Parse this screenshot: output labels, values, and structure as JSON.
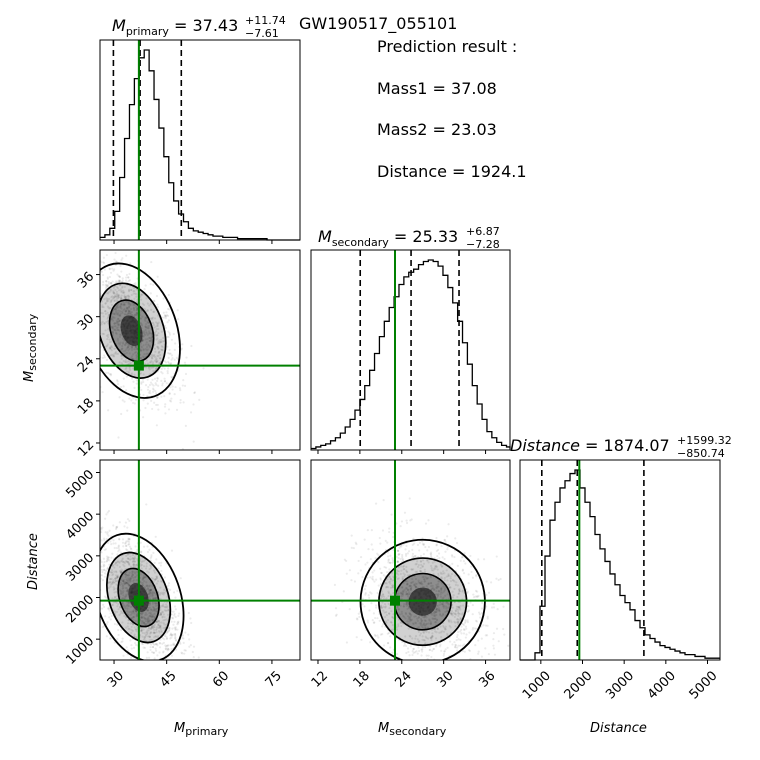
{
  "event_name": "GW190517_055101",
  "prediction": {
    "header": "Prediction result :",
    "mass1_label": "Mass1 = 37.08",
    "mass2_label": "Mass2 = 23.03",
    "distance_label": "Distance = 1924.1"
  },
  "colors": {
    "truth": "#008000",
    "hist": "#000000",
    "scatter": "#999999"
  },
  "chart_data": {
    "type": "corner",
    "parameters": [
      {
        "name": "M_primary",
        "axis_label_main": "M",
        "axis_label_sub": "primary",
        "title_main": "M",
        "title_sub": "primary",
        "title_eq": " = 37.43",
        "title_plus": "+11.74",
        "title_minus": "−7.61",
        "median": 37.43,
        "q_low": 29.82,
        "q_high": 49.17,
        "truth": 37.08,
        "range": [
          26,
          83
        ],
        "ticks": [
          30,
          45,
          60,
          75
        ],
        "hist": {
          "edges_start": 26,
          "bin_width": 1.4,
          "counts": [
            2,
            4,
            9,
            22,
            48,
            78,
            104,
            124,
            140,
            146,
            130,
            108,
            86,
            64,
            44,
            30,
            20,
            14,
            9,
            7,
            6,
            5,
            4,
            3,
            3,
            2,
            2,
            2,
            1,
            1,
            1,
            1,
            1,
            1,
            0,
            0,
            0,
            0,
            0,
            0,
            0
          ]
        }
      },
      {
        "name": "M_secondary",
        "axis_label_main": "M",
        "axis_label_sub": "secondary",
        "title_main": "M",
        "title_sub": "secondary",
        "title_eq": " = 25.33",
        "title_plus": "+6.87",
        "title_minus": "−7.28",
        "median": 25.33,
        "q_low": 18.05,
        "q_high": 32.2,
        "truth": 23.03,
        "range": [
          11,
          39.5
        ],
        "ticks": [
          12,
          18,
          24,
          30,
          36
        ],
        "hist": {
          "edges_start": 11,
          "bin_width": 0.7,
          "counts": [
            1,
            2,
            3,
            4,
            6,
            8,
            11,
            15,
            20,
            26,
            33,
            42,
            52,
            63,
            74,
            84,
            93,
            100,
            108,
            113,
            116,
            118,
            121,
            123,
            124,
            123,
            120,
            114,
            106,
            96,
            84,
            70,
            56,
            42,
            30,
            20,
            12,
            8,
            5,
            3,
            2,
            1
          ]
        }
      },
      {
        "name": "Distance",
        "axis_label_main": "Distance",
        "title_main": "Distance",
        "title_eq": " = 1874.07",
        "title_plus": "+1599.32",
        "title_minus": "−850.74",
        "median": 1874.07,
        "q_low": 1023.33,
        "q_high": 3473.39,
        "truth": 1924.1,
        "range": [
          500,
          5300
        ],
        "ticks": [
          1000,
          2000,
          3000,
          4000,
          5000
        ],
        "hist": {
          "edges_start": 500,
          "bin_width": 120,
          "counts": [
            0,
            0,
            0,
            4,
            30,
            58,
            78,
            88,
            96,
            100,
            104,
            106,
            96,
            88,
            80,
            70,
            62,
            55,
            48,
            42,
            36,
            32,
            28,
            22,
            18,
            14,
            12,
            10,
            8,
            7,
            6,
            5,
            4,
            3,
            3,
            2,
            2,
            1,
            1,
            1
          ]
        }
      }
    ],
    "contours_2d": [
      {
        "pair": [
          "M_primary",
          "M_secondary"
        ],
        "center": [
          35,
          28
        ],
        "spread": [
          6.5,
          5
        ],
        "rho": -0.55
      },
      {
        "pair": [
          "M_primary",
          "Distance"
        ],
        "center": [
          37,
          2000
        ],
        "spread": [
          6,
          800
        ],
        "rho": -0.55
      },
      {
        "pair": [
          "M_secondary",
          "Distance"
        ],
        "center": [
          27,
          1900
        ],
        "spread": [
          4.5,
          750
        ],
        "rho": -0.25
      }
    ]
  }
}
